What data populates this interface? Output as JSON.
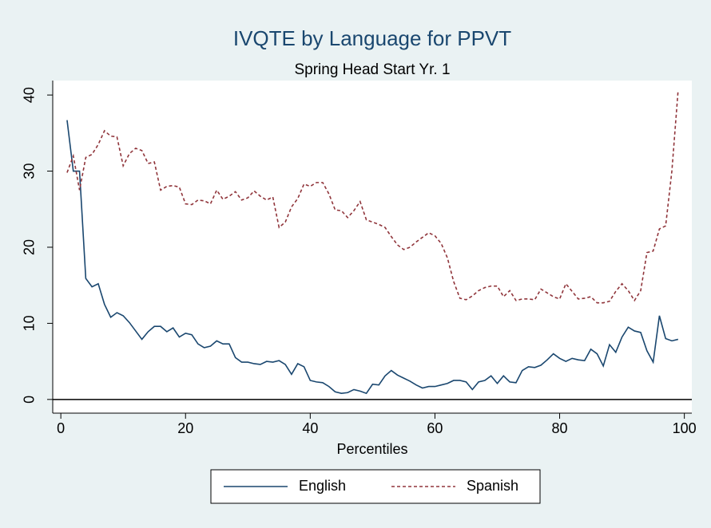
{
  "chart_data": {
    "type": "line",
    "title": "IVQTE by Language for PPVT",
    "subtitle": "Spring Head Start Yr. 1",
    "x_label": "Percentiles",
    "x": [
      1,
      2,
      3,
      4,
      5,
      6,
      7,
      8,
      9,
      10,
      11,
      12,
      13,
      14,
      15,
      16,
      17,
      18,
      19,
      20,
      21,
      22,
      23,
      24,
      25,
      26,
      27,
      28,
      29,
      30,
      31,
      32,
      33,
      34,
      35,
      36,
      37,
      38,
      39,
      40,
      41,
      42,
      43,
      44,
      45,
      46,
      47,
      48,
      49,
      50,
      51,
      52,
      53,
      54,
      55,
      56,
      57,
      58,
      59,
      60,
      61,
      62,
      63,
      64,
      65,
      66,
      67,
      68,
      69,
      70,
      71,
      72,
      73,
      74,
      75,
      76,
      77,
      78,
      79,
      80,
      81,
      82,
      83,
      84,
      85,
      86,
      87,
      88,
      89,
      90,
      91,
      92,
      93,
      94,
      95,
      96,
      97,
      98,
      99
    ],
    "series": [
      {
        "name": "English",
        "color": "#1a476f",
        "dash": false,
        "values": [
          36.7,
          30,
          30,
          15.9,
          14.8,
          15.2,
          12.5,
          10.8,
          11.4,
          11,
          10.1,
          9,
          7.9,
          8.9,
          9.6,
          9.6,
          8.9,
          9.4,
          8.2,
          8.7,
          8.5,
          7.3,
          6.8,
          7,
          7.7,
          7.3,
          7.3,
          5.5,
          4.9,
          4.9,
          4.7,
          4.6,
          5,
          4.9,
          5.1,
          4.6,
          3.3,
          4.7,
          4.3,
          2.5,
          2.3,
          2.2,
          1.7,
          1,
          0.8,
          0.9,
          1.3,
          1.1,
          0.8,
          2,
          1.9,
          3.1,
          3.8,
          3.2,
          2.8,
          2.4,
          1.9,
          1.5,
          1.7,
          1.7,
          1.9,
          2.1,
          2.5,
          2.5,
          2.3,
          1.3,
          2.3,
          2.5,
          3.1,
          2.1,
          3.1,
          2.3,
          2.2,
          3.8,
          4.3,
          4.2,
          4.5,
          5.2,
          6,
          5.4,
          5,
          5.4,
          5.2,
          5.1,
          6.6,
          6,
          4.4,
          7.2,
          6.2,
          8.2,
          9.5,
          9,
          8.8,
          6.4,
          4.9,
          11,
          8,
          7.7,
          7.9
        ]
      },
      {
        "name": "Spanish",
        "color": "#90353b",
        "dash": true,
        "values": [
          29.8,
          32,
          27.5,
          31.8,
          32.2,
          33.5,
          35.3,
          34.6,
          34.5,
          30.7,
          32.3,
          33,
          32.7,
          31,
          31.2,
          27.5,
          28,
          28.1,
          27.9,
          25.7,
          25.6,
          26.2,
          26.1,
          25.7,
          27.5,
          26.3,
          26.7,
          27.3,
          26.2,
          26.5,
          27.4,
          26.7,
          26.2,
          26.6,
          22.6,
          23.3,
          25.3,
          26.4,
          28.3,
          28,
          28.5,
          28.5,
          27,
          24.9,
          24.8,
          23.9,
          24.8,
          26,
          23.6,
          23.3,
          23,
          22.6,
          21.4,
          20.3,
          19.7,
          20,
          20.7,
          21.3,
          21.9,
          21.5,
          20.5,
          18.6,
          15.5,
          13.3,
          13.1,
          13.6,
          14.3,
          14.7,
          14.9,
          14.9,
          13.5,
          14.3,
          13,
          13.2,
          13.2,
          13.1,
          14.5,
          14,
          13.5,
          13.2,
          15.2,
          14.2,
          13.2,
          13.3,
          13.5,
          12.7,
          12.7,
          12.9,
          14.2,
          15.2,
          14.3,
          13,
          14.3,
          19.3,
          19.5,
          22.4,
          22.8,
          30,
          40.6
        ]
      }
    ],
    "xlim": [
      -1.3,
      101.2
    ],
    "ylim": [
      -1.8,
      41.9
    ],
    "xticks": [
      0,
      20,
      40,
      60,
      80,
      100
    ],
    "yticks": [
      0,
      10,
      20,
      30,
      40
    ],
    "hline": 0,
    "legend": "bottom"
  }
}
